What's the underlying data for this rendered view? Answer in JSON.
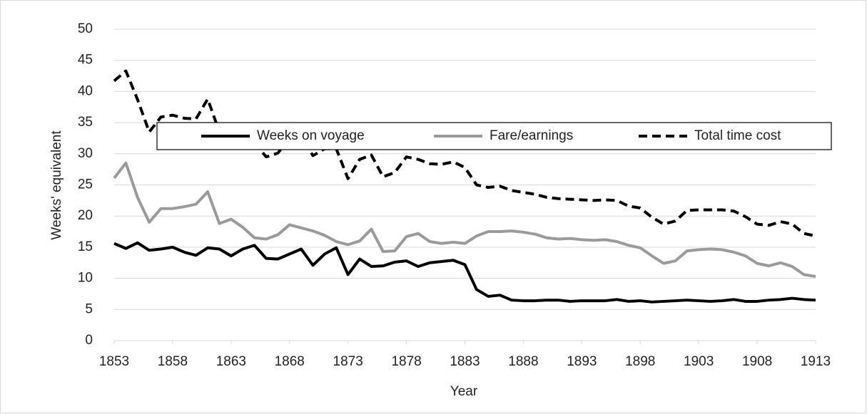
{
  "chart_data": {
    "type": "line",
    "x_label": "Year",
    "y_label": "Weeks' equivalent",
    "x": [
      1853,
      1854,
      1855,
      1856,
      1857,
      1858,
      1859,
      1860,
      1861,
      1862,
      1863,
      1864,
      1865,
      1866,
      1867,
      1868,
      1869,
      1870,
      1871,
      1872,
      1873,
      1874,
      1875,
      1876,
      1877,
      1878,
      1879,
      1880,
      1881,
      1882,
      1883,
      1884,
      1885,
      1886,
      1887,
      1888,
      1889,
      1890,
      1891,
      1892,
      1893,
      1894,
      1895,
      1896,
      1897,
      1898,
      1899,
      1900,
      1901,
      1902,
      1903,
      1904,
      1905,
      1906,
      1907,
      1908,
      1909,
      1910,
      1911,
      1912,
      1913
    ],
    "series": [
      {
        "name": "Weeks on voyage",
        "color": "#000000",
        "line_style": "solid",
        "values": [
          15.6,
          14.8,
          15.7,
          14.5,
          14.7,
          15.0,
          14.2,
          13.7,
          14.9,
          14.7,
          13.6,
          14.7,
          15.3,
          13.2,
          13.1,
          13.9,
          14.7,
          12.1,
          13.9,
          14.9,
          10.6,
          13.1,
          11.9,
          12.0,
          12.6,
          12.8,
          11.9,
          12.5,
          12.7,
          12.9,
          12.2,
          8.2,
          7.1,
          7.3,
          6.5,
          6.4,
          6.4,
          6.5,
          6.5,
          6.3,
          6.4,
          6.4,
          6.4,
          6.6,
          6.3,
          6.4,
          6.2,
          6.3,
          6.4,
          6.5,
          6.4,
          6.3,
          6.4,
          6.6,
          6.3,
          6.3,
          6.5,
          6.6,
          6.8,
          6.6,
          6.5
        ]
      },
      {
        "name": "Fare/earnings",
        "color": "#9a9a9a",
        "line_style": "solid",
        "values": [
          26.1,
          28.5,
          23.0,
          19.0,
          21.2,
          21.2,
          21.5,
          21.9,
          23.9,
          18.8,
          19.5,
          18.2,
          16.5,
          16.3,
          17.0,
          18.6,
          18.1,
          17.6,
          16.9,
          15.9,
          15.4,
          16.0,
          17.9,
          14.3,
          14.4,
          16.7,
          17.2,
          15.9,
          15.6,
          15.8,
          15.6,
          16.8,
          17.5,
          17.5,
          17.6,
          17.4,
          17.1,
          16.5,
          16.3,
          16.4,
          16.2,
          16.1,
          16.2,
          15.9,
          15.3,
          14.9,
          13.6,
          12.4,
          12.8,
          14.4,
          14.6,
          14.7,
          14.6,
          14.2,
          13.6,
          12.4,
          12.0,
          12.5,
          11.9,
          10.6,
          10.3
        ]
      },
      {
        "name": "Total time cost",
        "color": "#000000",
        "line_style": "dashed",
        "values": [
          41.7,
          43.3,
          38.7,
          33.5,
          35.9,
          36.2,
          35.7,
          35.6,
          38.8,
          33.5,
          33.1,
          32.9,
          31.8,
          29.5,
          30.1,
          32.5,
          32.8,
          29.7,
          30.8,
          30.8,
          26.0,
          29.1,
          29.8,
          26.3,
          27.0,
          29.5,
          29.1,
          28.4,
          28.3,
          28.7,
          27.8,
          25.0,
          24.6,
          24.8,
          24.1,
          23.8,
          23.5,
          23.0,
          22.8,
          22.7,
          22.6,
          22.5,
          22.6,
          22.5,
          21.6,
          21.3,
          19.8,
          18.7,
          19.2,
          20.9,
          21.0,
          21.0,
          21.0,
          20.8,
          19.9,
          18.7,
          18.5,
          19.1,
          18.7,
          17.2,
          16.8
        ]
      }
    ],
    "xlim": [
      1853,
      1913
    ],
    "xticks": [
      1853,
      1858,
      1863,
      1868,
      1873,
      1878,
      1883,
      1888,
      1893,
      1898,
      1903,
      1908,
      1913
    ],
    "ylim": [
      0,
      50
    ],
    "yticks": [
      0,
      5,
      10,
      15,
      20,
      25,
      30,
      35,
      40,
      45,
      50
    ],
    "grid": true,
    "legend": "top"
  }
}
